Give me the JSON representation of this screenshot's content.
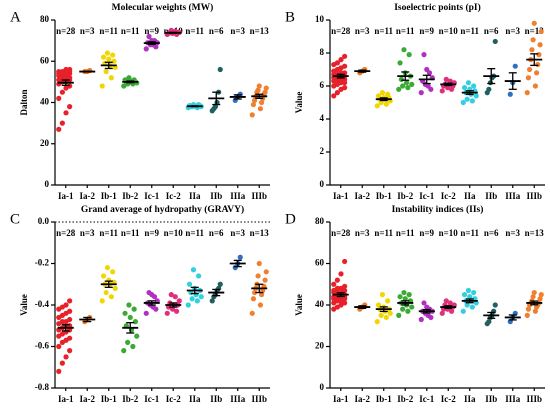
{
  "chart_data": [
    {
      "type": "strip",
      "panel_label": "A",
      "title": "Molecular weights (MW)",
      "ylabel": "Dalton",
      "categories": [
        "Ia-1",
        "Ia-2",
        "Ib-1",
        "Ib-2",
        "Ic-1",
        "Ic-2",
        "IIa",
        "IIb",
        "IIIa",
        "IIIb"
      ],
      "n_labels": [
        "n=28",
        "n=3",
        "n=11",
        "n=11",
        "n=9",
        "n=10",
        "n=11",
        "n=6",
        "n=3",
        "n=13"
      ],
      "colors": [
        "#e8202a",
        "#f07a20",
        "#f2d600",
        "#3aaa35",
        "#b030c0",
        "#e0307a",
        "#30d0e0",
        "#206060",
        "#3070c0",
        "#f08030"
      ],
      "points": [
        [
          27,
          30,
          35,
          38,
          42,
          45,
          47,
          48,
          49,
          50,
          50,
          51,
          51,
          52,
          52,
          52,
          53,
          53,
          53,
          54,
          54,
          54,
          55,
          55,
          55,
          55,
          56,
          56
        ],
        [
          55,
          55,
          55.5
        ],
        [
          48,
          52,
          55,
          57,
          58,
          59,
          60,
          61,
          62,
          63,
          64
        ],
        [
          48,
          49,
          49,
          49.5,
          50,
          50,
          50,
          50.5,
          51,
          51,
          52
        ],
        [
          66,
          67,
          68,
          68,
          69,
          69,
          70,
          70,
          72
        ],
        [
          73,
          73,
          73.5,
          73.5,
          74,
          74,
          74,
          74,
          74.5,
          75
        ],
        [
          37.5,
          37.5,
          38,
          38,
          38,
          38,
          38.5,
          38.5,
          38.5,
          39,
          39
        ],
        [
          36,
          37,
          38,
          40,
          45,
          56
        ],
        [
          41,
          43,
          44
        ],
        [
          34,
          37,
          39,
          40,
          41,
          42,
          43,
          44,
          45,
          45,
          46,
          47,
          48
        ]
      ],
      "means": [
        49.6,
        55,
        58,
        50,
        68.8,
        73.8,
        38.2,
        42,
        42.7,
        43
      ],
      "errors": [
        1.3,
        0.2,
        1.5,
        0.4,
        0.6,
        0.2,
        0.2,
        3,
        1,
        1
      ],
      "ylim": [
        0,
        80
      ],
      "yticks": [
        0,
        20,
        40,
        60,
        80
      ]
    },
    {
      "type": "strip",
      "panel_label": "B",
      "title": "Isoelectric points (pI)",
      "ylabel": "Value",
      "categories": [
        "Ia-1",
        "Ia-2",
        "Ib-1",
        "Ib-2",
        "Ic-1",
        "Ic-2",
        "IIa",
        "IIb",
        "IIIa",
        "IIIb"
      ],
      "n_labels": [
        "n=28",
        "n=3",
        "n=11",
        "n=11",
        "n=9",
        "n=10",
        "n=11",
        "n=6",
        "n=3",
        "n=13"
      ],
      "colors": [
        "#e8202a",
        "#f07a20",
        "#f2d600",
        "#3aaa35",
        "#b030c0",
        "#e0307a",
        "#30d0e0",
        "#206060",
        "#3070c0",
        "#f08030"
      ],
      "points": [
        [
          5.4,
          5.6,
          5.8,
          5.9,
          6,
          6.1,
          6.2,
          6.2,
          6.3,
          6.3,
          6.4,
          6.4,
          6.5,
          6.5,
          6.6,
          6.6,
          6.7,
          6.7,
          6.8,
          6.8,
          6.9,
          7,
          7.1,
          7.2,
          7.3,
          7.4,
          7.6,
          7.8
        ],
        [
          6.8,
          6.9,
          7
        ],
        [
          4.8,
          4.9,
          5,
          5.1,
          5.2,
          5.2,
          5.3,
          5.3,
          5.4,
          5.5,
          5.6
        ],
        [
          5.8,
          5.9,
          6,
          6.1,
          6.2,
          6.4,
          6.6,
          6.8,
          7.4,
          7.9,
          8.2
        ],
        [
          5.6,
          5.8,
          6,
          6.1,
          6.3,
          6.5,
          6.8,
          7,
          7.9
        ],
        [
          5.7,
          5.8,
          5.9,
          6,
          6,
          6.1,
          6.1,
          6.2,
          6.3,
          6.4
        ],
        [
          5,
          5.1,
          5.2,
          5.4,
          5.5,
          5.6,
          5.7,
          5.8,
          5.9,
          6,
          6.2
        ],
        [
          5.6,
          5.8,
          6.2,
          6.5,
          6.6,
          8.7
        ],
        [
          5.5,
          6.2,
          7.2
        ],
        [
          5.6,
          6,
          6.5,
          6.8,
          7,
          7.3,
          7.6,
          7.9,
          8.2,
          8.5,
          8.8,
          9.3,
          9.8
        ]
      ],
      "means": [
        6.6,
        6.9,
        5.2,
        6.6,
        6.4,
        6.1,
        5.6,
        6.6,
        6.3,
        7.6
      ],
      "errors": [
        0.11,
        0.06,
        0.08,
        0.25,
        0.25,
        0.07,
        0.11,
        0.45,
        0.5,
        0.35
      ],
      "ylim": [
        0,
        10
      ],
      "yticks": [
        0,
        2,
        4,
        6,
        8,
        10
      ]
    },
    {
      "type": "strip",
      "panel_label": "C",
      "title": "Grand average of hydropathy (GRAVY)",
      "ylabel": "Value",
      "categories": [
        "Ia-1",
        "Ia-2",
        "Ib-1",
        "Ib-2",
        "Ic-1",
        "Ic-2",
        "IIa",
        "IIb",
        "IIIa",
        "IIIb"
      ],
      "n_labels": [
        "n=28",
        "n=3",
        "n=11",
        "n=11",
        "n=9",
        "n=10",
        "n=11",
        "n=6",
        "n=3",
        "n=13"
      ],
      "colors": [
        "#e8202a",
        "#f07a20",
        "#f2d600",
        "#3aaa35",
        "#b030c0",
        "#e0307a",
        "#30d0e0",
        "#206060",
        "#3070c0",
        "#f08030"
      ],
      "points": [
        [
          -0.72,
          -0.68,
          -0.65,
          -0.62,
          -0.6,
          -0.58,
          -0.57,
          -0.56,
          -0.55,
          -0.54,
          -0.53,
          -0.52,
          -0.52,
          -0.51,
          -0.5,
          -0.5,
          -0.49,
          -0.48,
          -0.48,
          -0.47,
          -0.46,
          -0.45,
          -0.44,
          -0.43,
          -0.42,
          -0.41,
          -0.4,
          -0.38
        ],
        [
          -0.48,
          -0.47,
          -0.46
        ],
        [
          -0.38,
          -0.36,
          -0.34,
          -0.32,
          -0.3,
          -0.3,
          -0.29,
          -0.28,
          -0.26,
          -0.24,
          -0.22
        ],
        [
          -0.62,
          -0.6,
          -0.58,
          -0.55,
          -0.52,
          -0.5,
          -0.48,
          -0.46,
          -0.44,
          -0.42,
          -0.4
        ],
        [
          -0.44,
          -0.42,
          -0.41,
          -0.4,
          -0.39,
          -0.38,
          -0.36,
          -0.35,
          -0.34
        ],
        [
          -0.44,
          -0.43,
          -0.42,
          -0.41,
          -0.4,
          -0.4,
          -0.39,
          -0.38,
          -0.36,
          -0.35
        ],
        [
          -0.4,
          -0.38,
          -0.37,
          -0.36,
          -0.35,
          -0.34,
          -0.33,
          -0.32,
          -0.3,
          -0.26,
          -0.23
        ],
        [
          -0.38,
          -0.36,
          -0.35,
          -0.33,
          -0.32,
          -0.3
        ],
        [
          -0.22,
          -0.2,
          -0.17
        ],
        [
          -0.44,
          -0.4,
          -0.37,
          -0.35,
          -0.34,
          -0.33,
          -0.32,
          -0.31,
          -0.3,
          -0.28,
          -0.26,
          -0.24,
          -0.2
        ]
      ],
      "means": [
        -0.51,
        -0.47,
        -0.3,
        -0.51,
        -0.39,
        -0.4,
        -0.33,
        -0.34,
        -0.2,
        -0.32
      ],
      "errors": [
        0.015,
        0.01,
        0.015,
        0.025,
        0.01,
        0.01,
        0.015,
        0.015,
        0.015,
        0.02
      ],
      "ylim": [
        -0.8,
        0
      ],
      "yticks": [
        -0.8,
        -0.6,
        -0.4,
        -0.2,
        {
          "value": 0,
          "label": "0.0"
        }
      ],
      "reference_line": 0
    },
    {
      "type": "strip",
      "panel_label": "D",
      "title": "Instability indices (IIs)",
      "ylabel": "Value",
      "categories": [
        "Ia-1",
        "Ia-2",
        "Ib-1",
        "Ib-2",
        "Ic-1",
        "Ic-2",
        "IIa",
        "IIb",
        "IIIa",
        "IIIb"
      ],
      "n_labels": [
        "n=28",
        "n=3",
        "n=11",
        "n=11",
        "n=9",
        "n=10",
        "n=11",
        "n=6",
        "n=3",
        "n=13"
      ],
      "colors": [
        "#e8202a",
        "#f07a20",
        "#f2d600",
        "#3aaa35",
        "#b030c0",
        "#e0307a",
        "#30d0e0",
        "#206060",
        "#3070c0",
        "#f08030"
      ],
      "points": [
        [
          38,
          39,
          40,
          41,
          41,
          42,
          42,
          43,
          43,
          43,
          44,
          44,
          44,
          45,
          45,
          45,
          46,
          46,
          46,
          47,
          47,
          48,
          48,
          49,
          50,
          52,
          55,
          61
        ],
        [
          38,
          39,
          40
        ],
        [
          32,
          34,
          35,
          36,
          37,
          38,
          38,
          39,
          40,
          42,
          45
        ],
        [
          35,
          37,
          38,
          39,
          40,
          41,
          42,
          43,
          44,
          45,
          46
        ],
        [
          33,
          34,
          35,
          36,
          37,
          37,
          38,
          39,
          41
        ],
        [
          36,
          37,
          38,
          38,
          39,
          39,
          40,
          40,
          41,
          42
        ],
        [
          37,
          39,
          40,
          41,
          42,
          42,
          43,
          44,
          45,
          46,
          47
        ],
        [
          31,
          32,
          34,
          35,
          37,
          40
        ],
        [
          32,
          34,
          36
        ],
        [
          35,
          37,
          38,
          39,
          40,
          40,
          41,
          41,
          42,
          43,
          44,
          45,
          46
        ]
      ],
      "means": [
        45,
        39,
        38,
        41,
        37,
        39,
        42,
        35,
        34,
        41
      ],
      "errors": [
        0.9,
        0.6,
        1.1,
        1,
        0.8,
        0.6,
        0.9,
        1.4,
        1.2,
        0.9
      ],
      "ylim": [
        0,
        80
      ],
      "yticks": [
        0,
        20,
        40,
        60,
        80
      ]
    }
  ]
}
